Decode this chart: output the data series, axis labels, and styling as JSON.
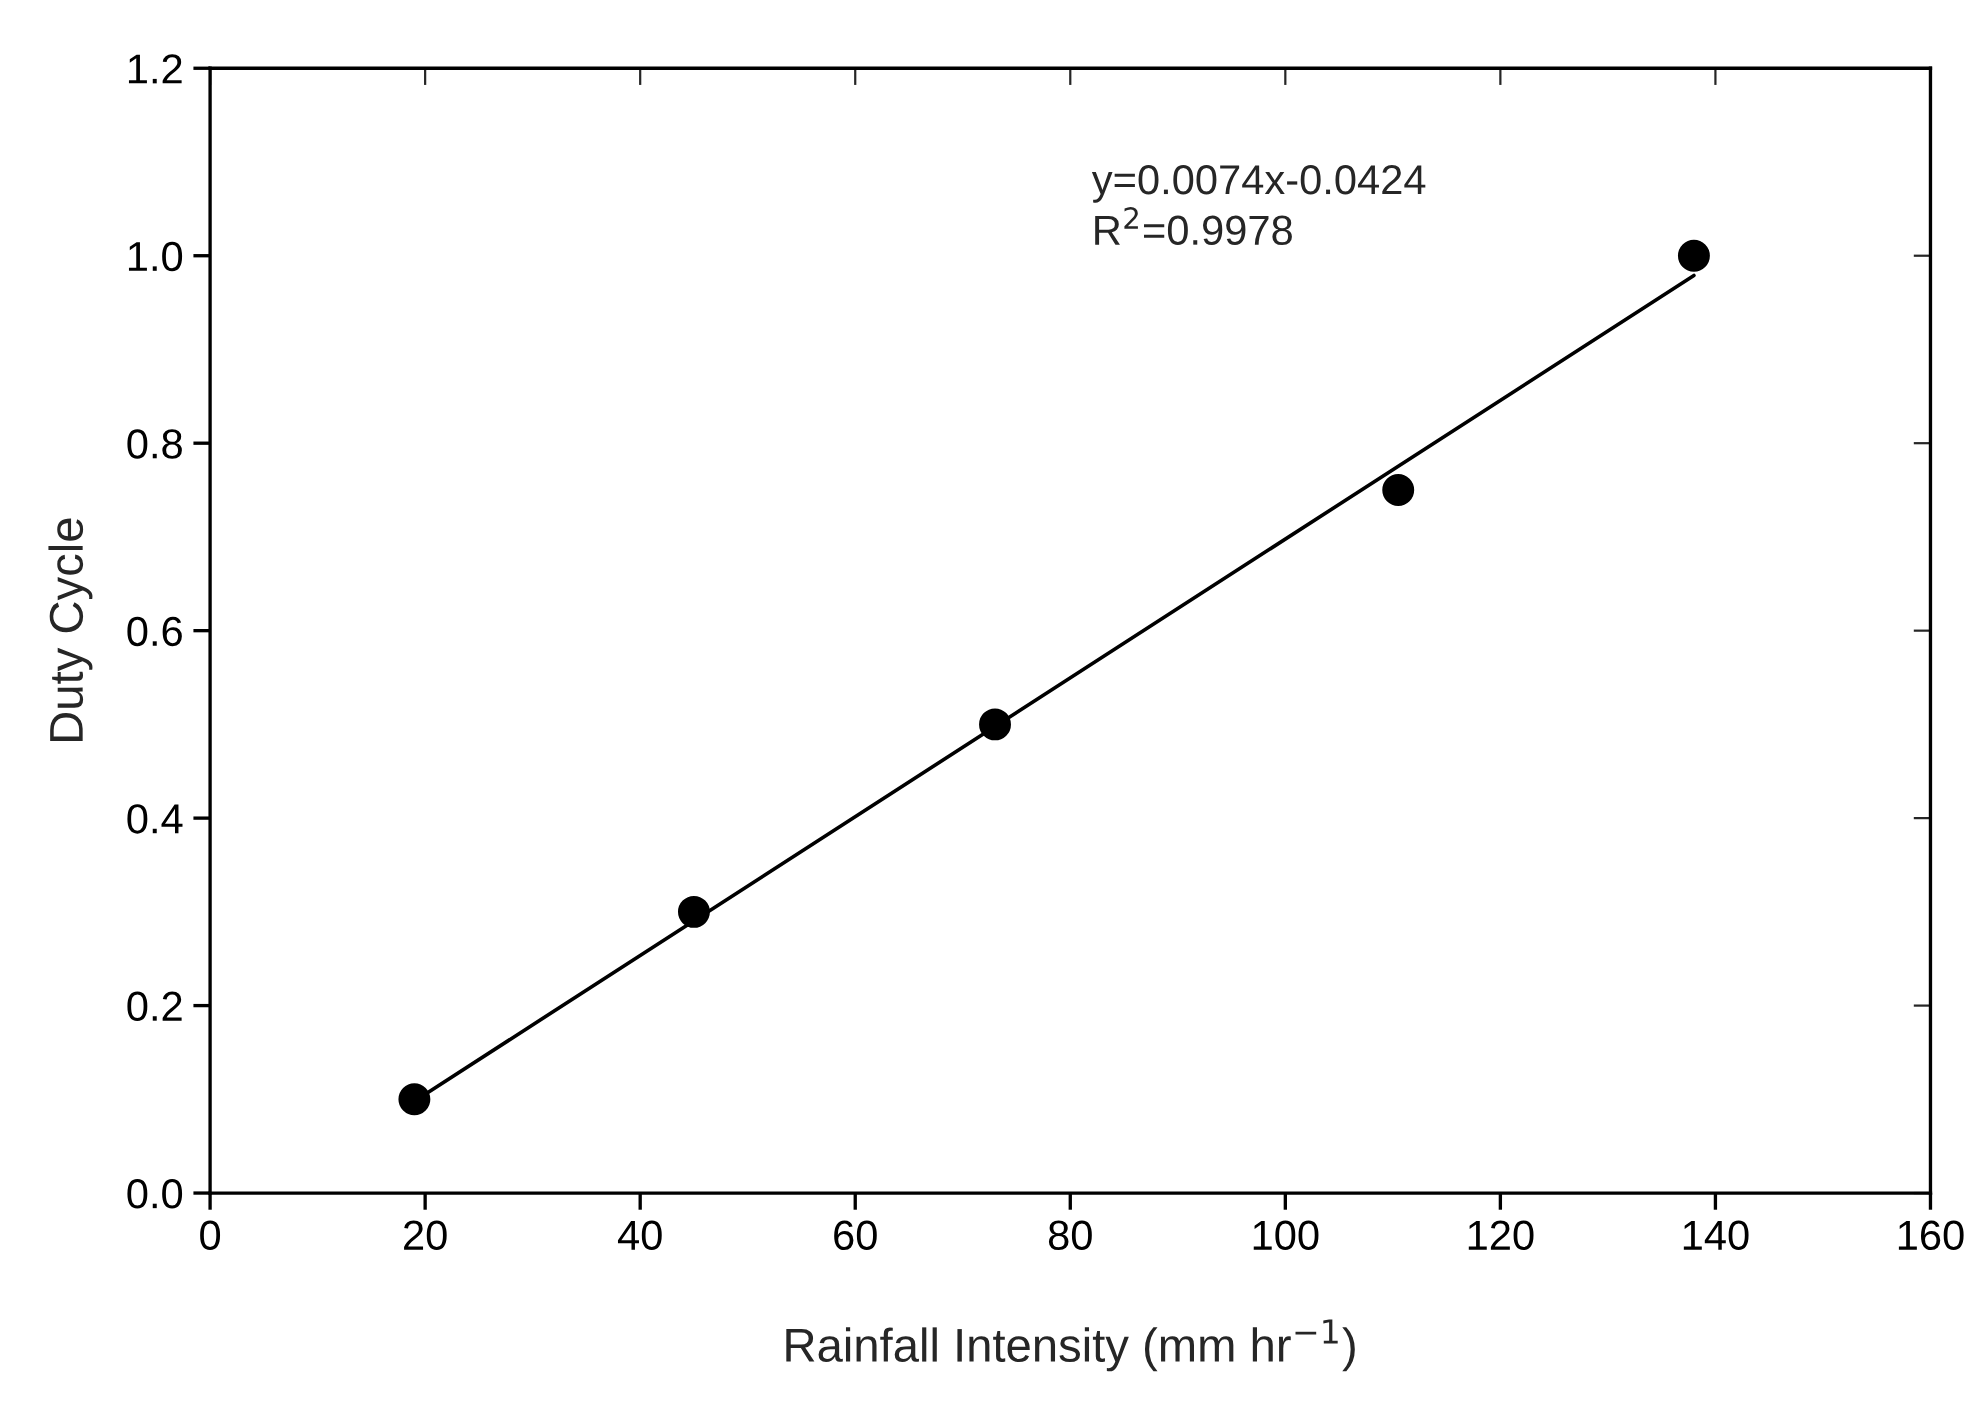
{
  "chart_data": {
    "type": "scatter",
    "xlabel": "Rainfall Intensity (mm hr$^{−1}$)",
    "ylabel": "Duty Cycle",
    "x": [
      19,
      45,
      73,
      110.5,
      138
    ],
    "series": [
      {
        "color": "#000000",
        "marker": "circle",
        "values": [
          0.1,
          0.3,
          0.5,
          0.75,
          1.0
        ]
      },
      {
        "type": "line",
        "color": "#000000",
        "x": [
          19,
          138
        ],
        "values": [
          0.098,
          0.979
        ],
        "line_style": "solid"
      }
    ],
    "annotations": [
      "y=0.0074x-0.0424\nR$^{2}$=0.9978"
    ],
    "xlim": [
      0,
      160
    ],
    "xticks": [
      0,
      20,
      40,
      60,
      80,
      100,
      120,
      140,
      160
    ],
    "ylim": [
      0,
      1.2
    ],
    "yticks": [
      {
        "value": 0,
        "label": "0.0"
      },
      {
        "value": 0.2,
        "label": "0.2"
      },
      {
        "value": 0.4,
        "label": "0.4"
      },
      {
        "value": 0.6,
        "label": "0.6"
      },
      {
        "value": 0.8,
        "label": "0.8"
      },
      {
        "value": 1.0,
        "label": "1.0"
      },
      {
        "value": 1.2,
        "label": "1.2"
      }
    ],
    "grid": false
  }
}
